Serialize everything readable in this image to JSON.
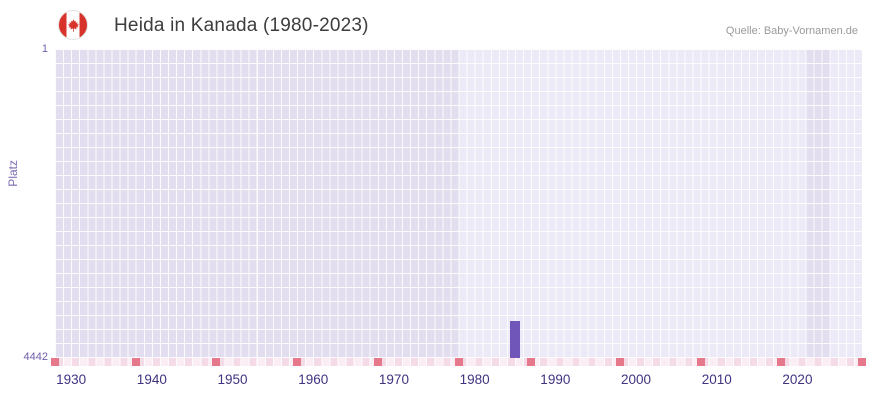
{
  "header": {
    "title": "Heida in Kanada (1980-2023)",
    "source": "Quelle: Baby-Vornamen.de",
    "flag_icon": "canada-flag-icon"
  },
  "chart_data": {
    "type": "bar",
    "title": "Heida in Kanada (1980-2023)",
    "source": "Quelle: Baby-Vornamen.de",
    "xlabel": "",
    "ylabel": "Platz",
    "y_axis": {
      "top_label": "1",
      "bottom_label": "4442",
      "min": 1,
      "max": 4442,
      "inverted": true
    },
    "x_axis": {
      "range": [
        1928,
        2028
      ],
      "ticks": [
        1930,
        1940,
        1950,
        1960,
        1970,
        1980,
        1990,
        2000,
        2010,
        2020
      ]
    },
    "series": [
      {
        "name": "Heida",
        "points": [
          {
            "year": 1985,
            "rank": 3910
          }
        ]
      }
    ],
    "axis_markers": {
      "years": [
        1928,
        1938,
        1948,
        1958,
        1968,
        1978,
        1987,
        1998,
        2008,
        2018,
        2028
      ]
    },
    "background_bands": [
      {
        "from": 1928,
        "to": 1978,
        "shade": "dark"
      },
      {
        "from": 1978,
        "to": 2021,
        "shade": "light"
      },
      {
        "from": 2021,
        "to": 2024,
        "shade": "dark"
      },
      {
        "from": 2024,
        "to": 2028,
        "shade": "light"
      }
    ],
    "colors": {
      "bar": "#7156b9",
      "dark_band": "#e3ddf0",
      "light_band": "#edeaf7",
      "marker": "#e5798b",
      "axis_label": "#3f3480",
      "y_label": "#6f5fa8",
      "grid": "#ffffff"
    }
  }
}
